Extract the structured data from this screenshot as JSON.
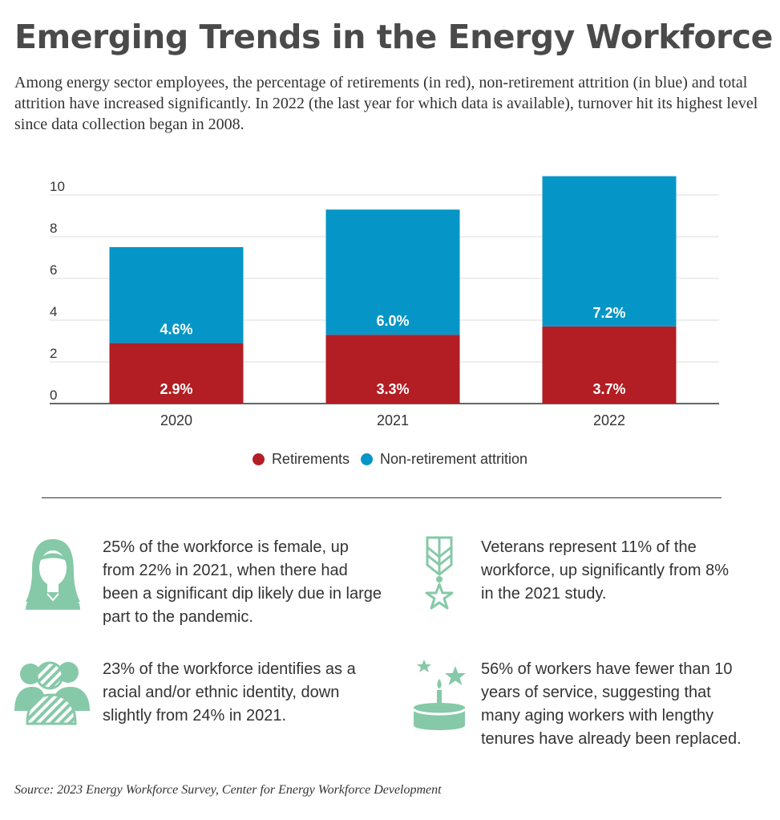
{
  "title": "Emerging Trends in the Energy Workforce",
  "subtitle": "Among energy sector employees, the percentage of retirements (in red), non-retirement attrition (in blue) and total attrition have increased significantly. In 2022 (the last year for which data is available), turnover hit its highest level since data collection began in 2008.",
  "chart_data": {
    "type": "bar",
    "stacked": true,
    "categories": [
      "2020",
      "2021",
      "2022"
    ],
    "series": [
      {
        "name": "Retirements",
        "values": [
          2.9,
          3.3,
          3.7
        ],
        "labels": [
          "2.9%",
          "3.3%",
          "3.7%"
        ],
        "color": "#b21e23"
      },
      {
        "name": "Non-retirement attrition",
        "values": [
          4.6,
          6.0,
          7.2
        ],
        "labels": [
          "4.6%",
          "6.0%",
          "7.2%"
        ],
        "color": "#0596c7"
      }
    ],
    "yticks": [
      0,
      2,
      4,
      6,
      8,
      10
    ],
    "ylim": [
      0,
      11
    ],
    "grid": true,
    "legend": "bottom-center"
  },
  "colors": {
    "retirements": "#b21e23",
    "non_retirement": "#0596c7",
    "icon": "#86c9a8",
    "gridline": "#dddddd"
  },
  "facts": [
    {
      "icon": "woman-icon",
      "text": "25% of the workforce is female, up from 22% in 2021, when there had been a significant dip likely due in large part to the pandemic."
    },
    {
      "icon": "medal-icon",
      "text": "Veterans represent 11% of the workforce, up significantly from 8% in the 2021 study."
    },
    {
      "icon": "people-icon",
      "text": "23% of the workforce identifies as a racial and/or ethnic identity, down slightly from 24% in 2021."
    },
    {
      "icon": "cake-icon",
      "text": "56% of workers have fewer than 10 years of service, suggesting that many aging workers with lengthy tenures have already been replaced."
    }
  ],
  "source": "Source: 2023 Energy Workforce Survey, Center for Energy Workforce Development"
}
